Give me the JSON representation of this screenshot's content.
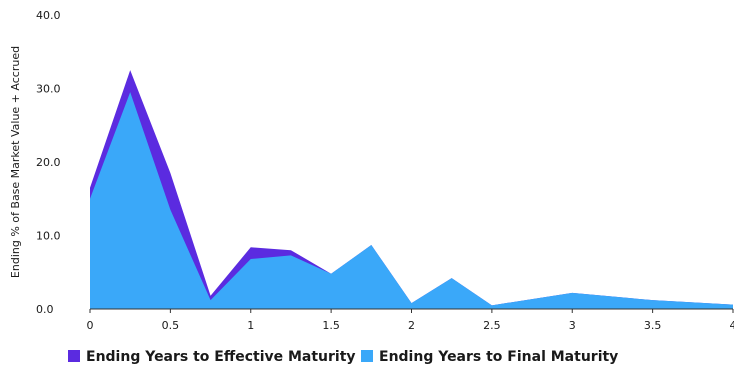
{
  "chart_data": {
    "type": "area",
    "title": "",
    "xlabel": "",
    "ylabel": "Ending % of Base Market Value + Accrued",
    "xlim": [
      0,
      4
    ],
    "ylim": [
      0,
      40
    ],
    "x_ticks": [
      "0",
      "0.5",
      "1",
      "1.5",
      "2",
      "2.5",
      "3",
      "3.5",
      "4"
    ],
    "y_ticks": [
      "0.0",
      "10.0",
      "20.0",
      "30.0",
      "40.0"
    ],
    "grid": false,
    "legend_position": "bottom-left",
    "x": [
      0,
      0.25,
      0.5,
      0.75,
      1,
      1.25,
      1.5,
      1.75,
      2,
      2.25,
      2.5,
      3,
      3.5,
      4
    ],
    "series": [
      {
        "name": "Ending Years to Effective Maturity",
        "color": "#5b2be0",
        "values": [
          16.5,
          32.5,
          18.5,
          1.8,
          8.4,
          8.0,
          4.8,
          8.7,
          0.8,
          4.2,
          0.5,
          2.2,
          1.2,
          0.6
        ]
      },
      {
        "name": "Ending Years to Final Maturity",
        "color": "#3aa8f9",
        "values": [
          15.0,
          29.5,
          13.5,
          1.2,
          6.8,
          7.3,
          4.8,
          8.7,
          0.8,
          4.2,
          0.5,
          2.2,
          1.2,
          0.6
        ]
      }
    ]
  }
}
